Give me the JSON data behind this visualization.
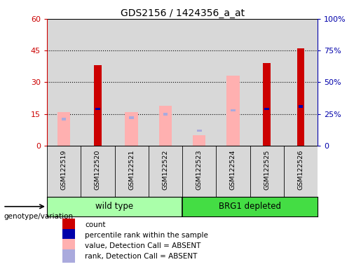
{
  "title": "GDS2156 / 1424356_a_at",
  "samples": [
    "GSM122519",
    "GSM122520",
    "GSM122521",
    "GSM122522",
    "GSM122523",
    "GSM122524",
    "GSM122525",
    "GSM122526"
  ],
  "count_values": [
    0,
    38,
    0,
    0,
    0,
    0,
    39,
    46
  ],
  "percentile_rank": [
    0,
    29,
    0,
    0,
    0,
    0,
    29,
    31
  ],
  "absent_value": [
    16,
    0,
    16,
    19,
    5,
    33,
    0,
    0
  ],
  "absent_rank": [
    21,
    0,
    22,
    25,
    12,
    28,
    0,
    0
  ],
  "ylim_left": [
    0,
    60
  ],
  "ylim_right": [
    0,
    100
  ],
  "yticks_left": [
    0,
    15,
    30,
    45,
    60
  ],
  "yticks_right": [
    0,
    25,
    50,
    75,
    100
  ],
  "yticklabels_left": [
    "0",
    "15",
    "30",
    "45",
    "60"
  ],
  "yticklabels_right": [
    "0",
    "25%",
    "50%",
    "75%",
    "100%"
  ],
  "color_count": "#cc0000",
  "color_percentile": "#0000aa",
  "color_absent_value": "#ffb0b0",
  "color_absent_rank": "#aaaadd",
  "wild_type_color": "#aaffaa",
  "brg1_color": "#44dd44",
  "legend_labels": [
    "count",
    "percentile rank within the sample",
    "value, Detection Call = ABSENT",
    "rank, Detection Call = ABSENT"
  ],
  "legend_colors": [
    "#cc0000",
    "#0000aa",
    "#ffb0b0",
    "#aaaadd"
  ],
  "genotype_label": "genotype/variation",
  "col_bg": "#d8d8d8",
  "plot_bg": "#ffffff"
}
